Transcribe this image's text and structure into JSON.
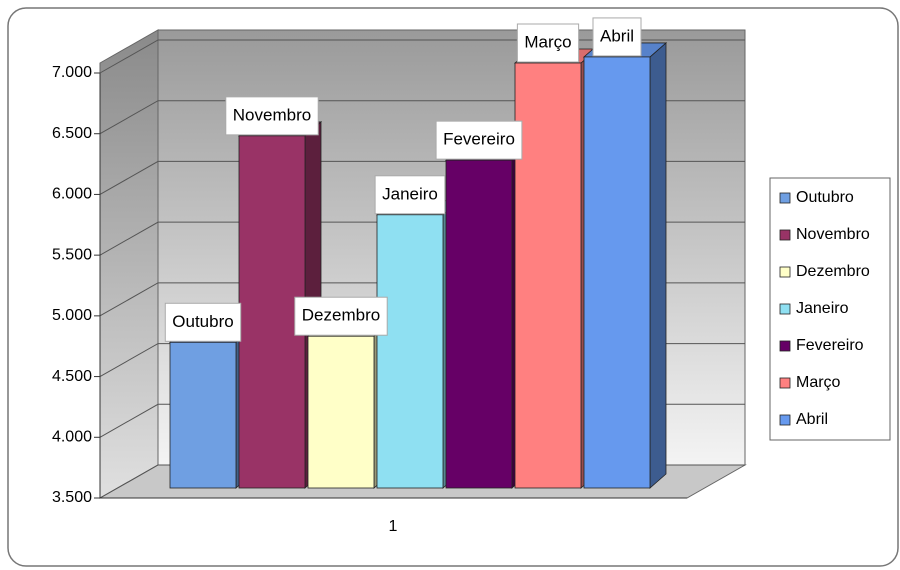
{
  "chart_data": {
    "type": "bar",
    "categories": [
      "1"
    ],
    "series": [
      {
        "name": "Outubro",
        "color": "#6f9fe2",
        "values": [
          4700
        ]
      },
      {
        "name": "Novembro",
        "color": "#993366",
        "values": [
          6400
        ]
      },
      {
        "name": "Dezembro",
        "color": "#ffffc8",
        "values": [
          4750
        ]
      },
      {
        "name": "Janeiro",
        "color": "#8fe0f2",
        "values": [
          5750
        ]
      },
      {
        "name": "Fevereiro",
        "color": "#660066",
        "values": [
          6200
        ]
      },
      {
        "name": "Março",
        "color": "#ff8080",
        "values": [
          7000
        ]
      },
      {
        "name": "Abril",
        "color": "#6699ee",
        "values": [
          7050
        ]
      }
    ],
    "ylim": [
      3500,
      7000
    ],
    "yticks": [
      {
        "value": 3500,
        "label": "3.500"
      },
      {
        "value": 4000,
        "label": "4.000"
      },
      {
        "value": 4500,
        "label": "4.500"
      },
      {
        "value": 5000,
        "label": "5.000"
      },
      {
        "value": 5500,
        "label": "5.500"
      },
      {
        "value": 6000,
        "label": "6.000"
      },
      {
        "value": 6500,
        "label": "6.500"
      },
      {
        "value": 7000,
        "label": "7.000"
      }
    ],
    "grid": true,
    "legend": "right"
  }
}
